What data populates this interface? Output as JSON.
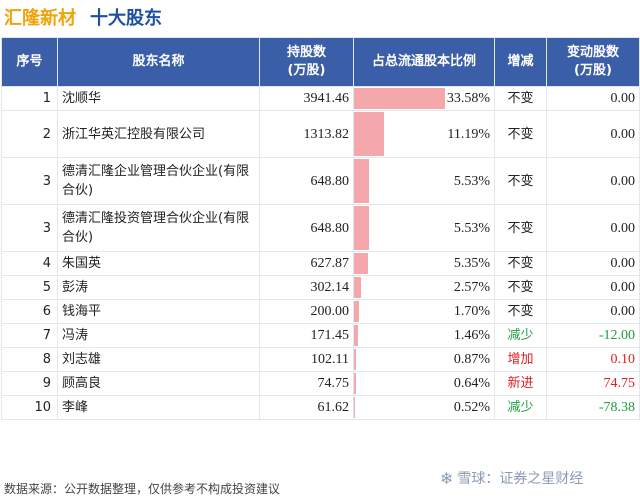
{
  "title": {
    "company": "汇隆新材",
    "heading": "十大股东"
  },
  "headers": {
    "index": "序号",
    "name": "股东名称",
    "shares": "持股数\n(万股)",
    "ratio": "占总流通股本比例",
    "change": "增减",
    "change_shares": "变动股数\n(万股)"
  },
  "rows": [
    {
      "index": "1",
      "name": "沈顺华",
      "shares": "3941.46",
      "ratio": "33.58%",
      "ratio_value": 33.58,
      "change": "不变",
      "change_shares": "0.00"
    },
    {
      "index": "2",
      "name": "浙江华英汇控股有限公司",
      "shares": "1313.82",
      "ratio": "11.19%",
      "ratio_value": 11.19,
      "change": "不变",
      "change_shares": "0.00"
    },
    {
      "index": "3",
      "name": "德清汇隆企业管理合伙企业(有限合伙)",
      "shares": "648.80",
      "ratio": "5.53%",
      "ratio_value": 5.53,
      "change": "不变",
      "change_shares": "0.00"
    },
    {
      "index": "3",
      "name": "德清汇隆投资管理合伙企业(有限合伙)",
      "shares": "648.80",
      "ratio": "5.53%",
      "ratio_value": 5.53,
      "change": "不变",
      "change_shares": "0.00"
    },
    {
      "index": "4",
      "name": "朱国英",
      "shares": "627.87",
      "ratio": "5.35%",
      "ratio_value": 5.35,
      "change": "不变",
      "change_shares": "0.00"
    },
    {
      "index": "5",
      "name": "彭涛",
      "shares": "302.14",
      "ratio": "2.57%",
      "ratio_value": 2.57,
      "change": "不变",
      "change_shares": "0.00"
    },
    {
      "index": "6",
      "name": "钱海平",
      "shares": "200.00",
      "ratio": "1.70%",
      "ratio_value": 1.7,
      "change": "不变",
      "change_shares": "0.00"
    },
    {
      "index": "7",
      "name": "冯涛",
      "shares": "171.45",
      "ratio": "1.46%",
      "ratio_value": 1.46,
      "change": "减少",
      "change_shares": "-12.00"
    },
    {
      "index": "8",
      "name": "刘志雄",
      "shares": "102.11",
      "ratio": "0.87%",
      "ratio_value": 0.87,
      "change": "增加",
      "change_shares": "0.10"
    },
    {
      "index": "9",
      "name": "顾高良",
      "shares": "74.75",
      "ratio": "0.64%",
      "ratio_value": 0.64,
      "change": "新进",
      "change_shares": "74.75"
    },
    {
      "index": "10",
      "name": "李峰",
      "shares": "61.62",
      "ratio": "0.52%",
      "ratio_value": 0.52,
      "change": "减少",
      "change_shares": "-78.38"
    }
  ],
  "colors": {
    "header_bg": "#3b5ea8",
    "bar": "#f4a8ac",
    "up": "#e02020",
    "down": "#1e9e3e",
    "title_orange": "#f0a30a",
    "title_blue": "#1e4fa3"
  },
  "footer": {
    "source": "数据来源：公开数据整理，仅供参考不构成投资建议"
  },
  "logo": {
    "icon": "snowball-icon",
    "text": "雪球：证券之星财经"
  }
}
